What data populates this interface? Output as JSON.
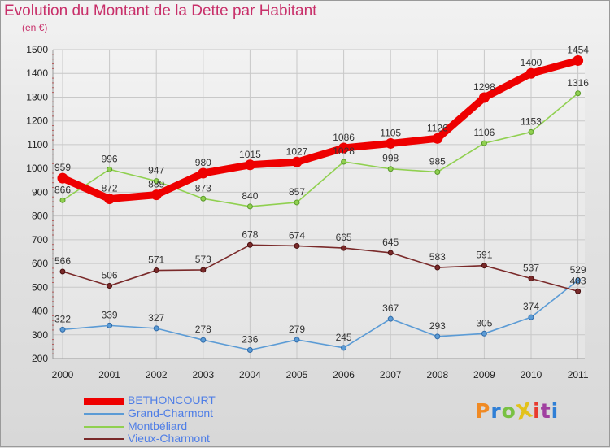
{
  "title": "Evolution du Montant de la Dette par Habitant",
  "subtitle": "(en €)",
  "logo": {
    "text": "ProXiti",
    "colors": [
      "#f08a24",
      "#2f7fd6",
      "#79c142",
      "#e3c21b",
      "#e83a2e",
      "#a040a0",
      "#2f7fd6"
    ]
  },
  "chart_data": {
    "type": "line",
    "title": "Evolution du Montant de la Dette par Habitant",
    "subtitle": "(en €)",
    "x": [
      2000,
      2001,
      2002,
      2003,
      2004,
      2005,
      2006,
      2007,
      2008,
      2009,
      2010,
      2011
    ],
    "ylim": [
      200,
      1500
    ],
    "yticks": [
      200,
      300,
      400,
      500,
      600,
      700,
      800,
      900,
      1000,
      1100,
      1200,
      1300,
      1400,
      1500
    ],
    "grid": true,
    "legend_position": "bottom-left",
    "series": [
      {
        "name": "BETHONCOURT",
        "color": "#ee0000",
        "emphasis": true,
        "values": [
          959,
          872,
          889,
          980,
          1015,
          1027,
          1086,
          1105,
          1126,
          1298,
          1400,
          1454
        ]
      },
      {
        "name": "Grand-Charmont",
        "color": "#5b9bd5",
        "emphasis": false,
        "values": [
          322,
          339,
          327,
          278,
          236,
          279,
          245,
          367,
          293,
          305,
          374,
          529
        ]
      },
      {
        "name": "Montbéliard",
        "color": "#90d050",
        "emphasis": false,
        "values": [
          866,
          996,
          947,
          873,
          840,
          857,
          1028,
          998,
          985,
          1106,
          1153,
          1316
        ]
      },
      {
        "name": "Vieux-Charmont",
        "color": "#7a2a2a",
        "emphasis": false,
        "values": [
          566,
          506,
          571,
          573,
          678,
          674,
          665,
          645,
          583,
          591,
          537,
          483
        ]
      }
    ]
  }
}
